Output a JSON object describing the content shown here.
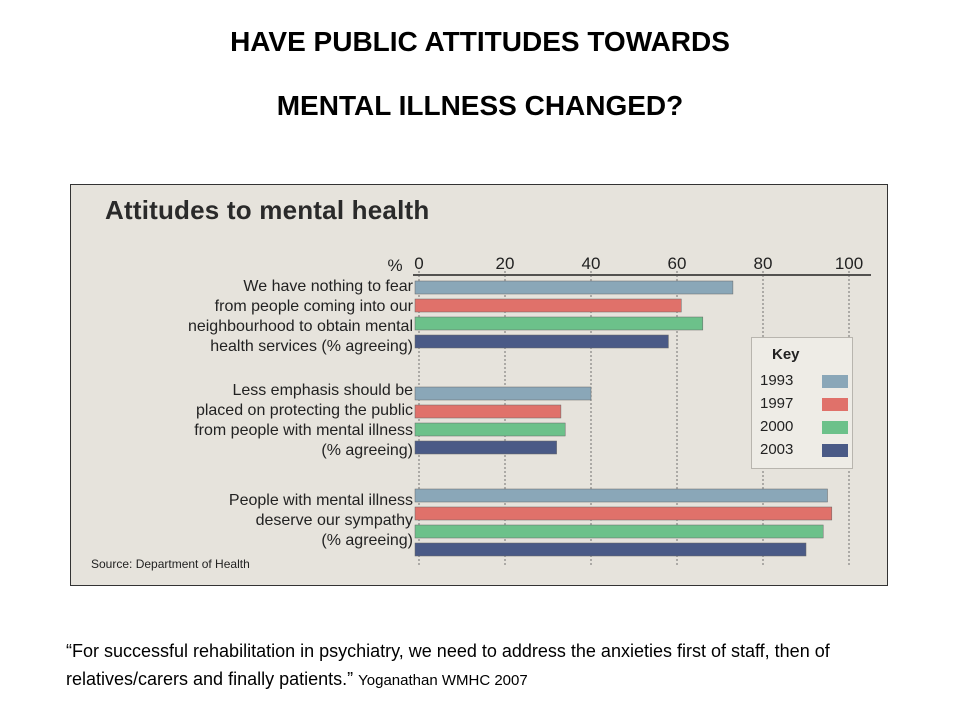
{
  "slide": {
    "title_line1": "HAVE  PUBLIC ATTITUDES TOWARDS",
    "title_line2": "MENTAL ILLNESS CHANGED?",
    "quote": "“For successful rehabilitation in psychiatry, we need to address the anxieties first of staff, then of relatives/carers and finally patients.” ",
    "attribution": "Yoganathan WMHC 2007"
  },
  "chart_data": {
    "type": "bar",
    "orientation": "horizontal",
    "title": "Attitudes to mental health",
    "axis_unit_label": "%",
    "xlim": [
      0,
      100
    ],
    "x_ticks": [
      "0",
      "20",
      "40",
      "60",
      "80",
      "100"
    ],
    "categories": [
      "We have nothing to fear from people coming into our neighbourhood to obtain mental health services (% agreeing)",
      "Less emphasis should be placed on protecting the public from people with mental illness (% agreeing)",
      "People with mental illness deserve our sympathy (% agreeing)"
    ],
    "category_lines": [
      [
        "We have nothing to fear",
        "from people coming into our",
        "neighbourhood to obtain mental",
        "health services (% agreeing)"
      ],
      [
        "Less emphasis should be",
        "placed on protecting the public",
        "from people with mental illness",
        "(% agreeing)"
      ],
      [
        "People with mental illness",
        "deserve our sympathy",
        "(% agreeing)"
      ]
    ],
    "series": [
      {
        "name": "1993",
        "color": "#8aa7b8",
        "values": [
          73,
          40,
          95
        ]
      },
      {
        "name": "1997",
        "color": "#e0716a",
        "values": [
          61,
          33,
          96
        ]
      },
      {
        "name": "2000",
        "color": "#6cc18a",
        "values": [
          66,
          34,
          94
        ]
      },
      {
        "name": "2003",
        "color": "#4a5a86",
        "values": [
          58,
          32,
          90
        ]
      }
    ],
    "legend_title": "Key",
    "legend_position": "right",
    "source": "Source: Department of Health"
  }
}
